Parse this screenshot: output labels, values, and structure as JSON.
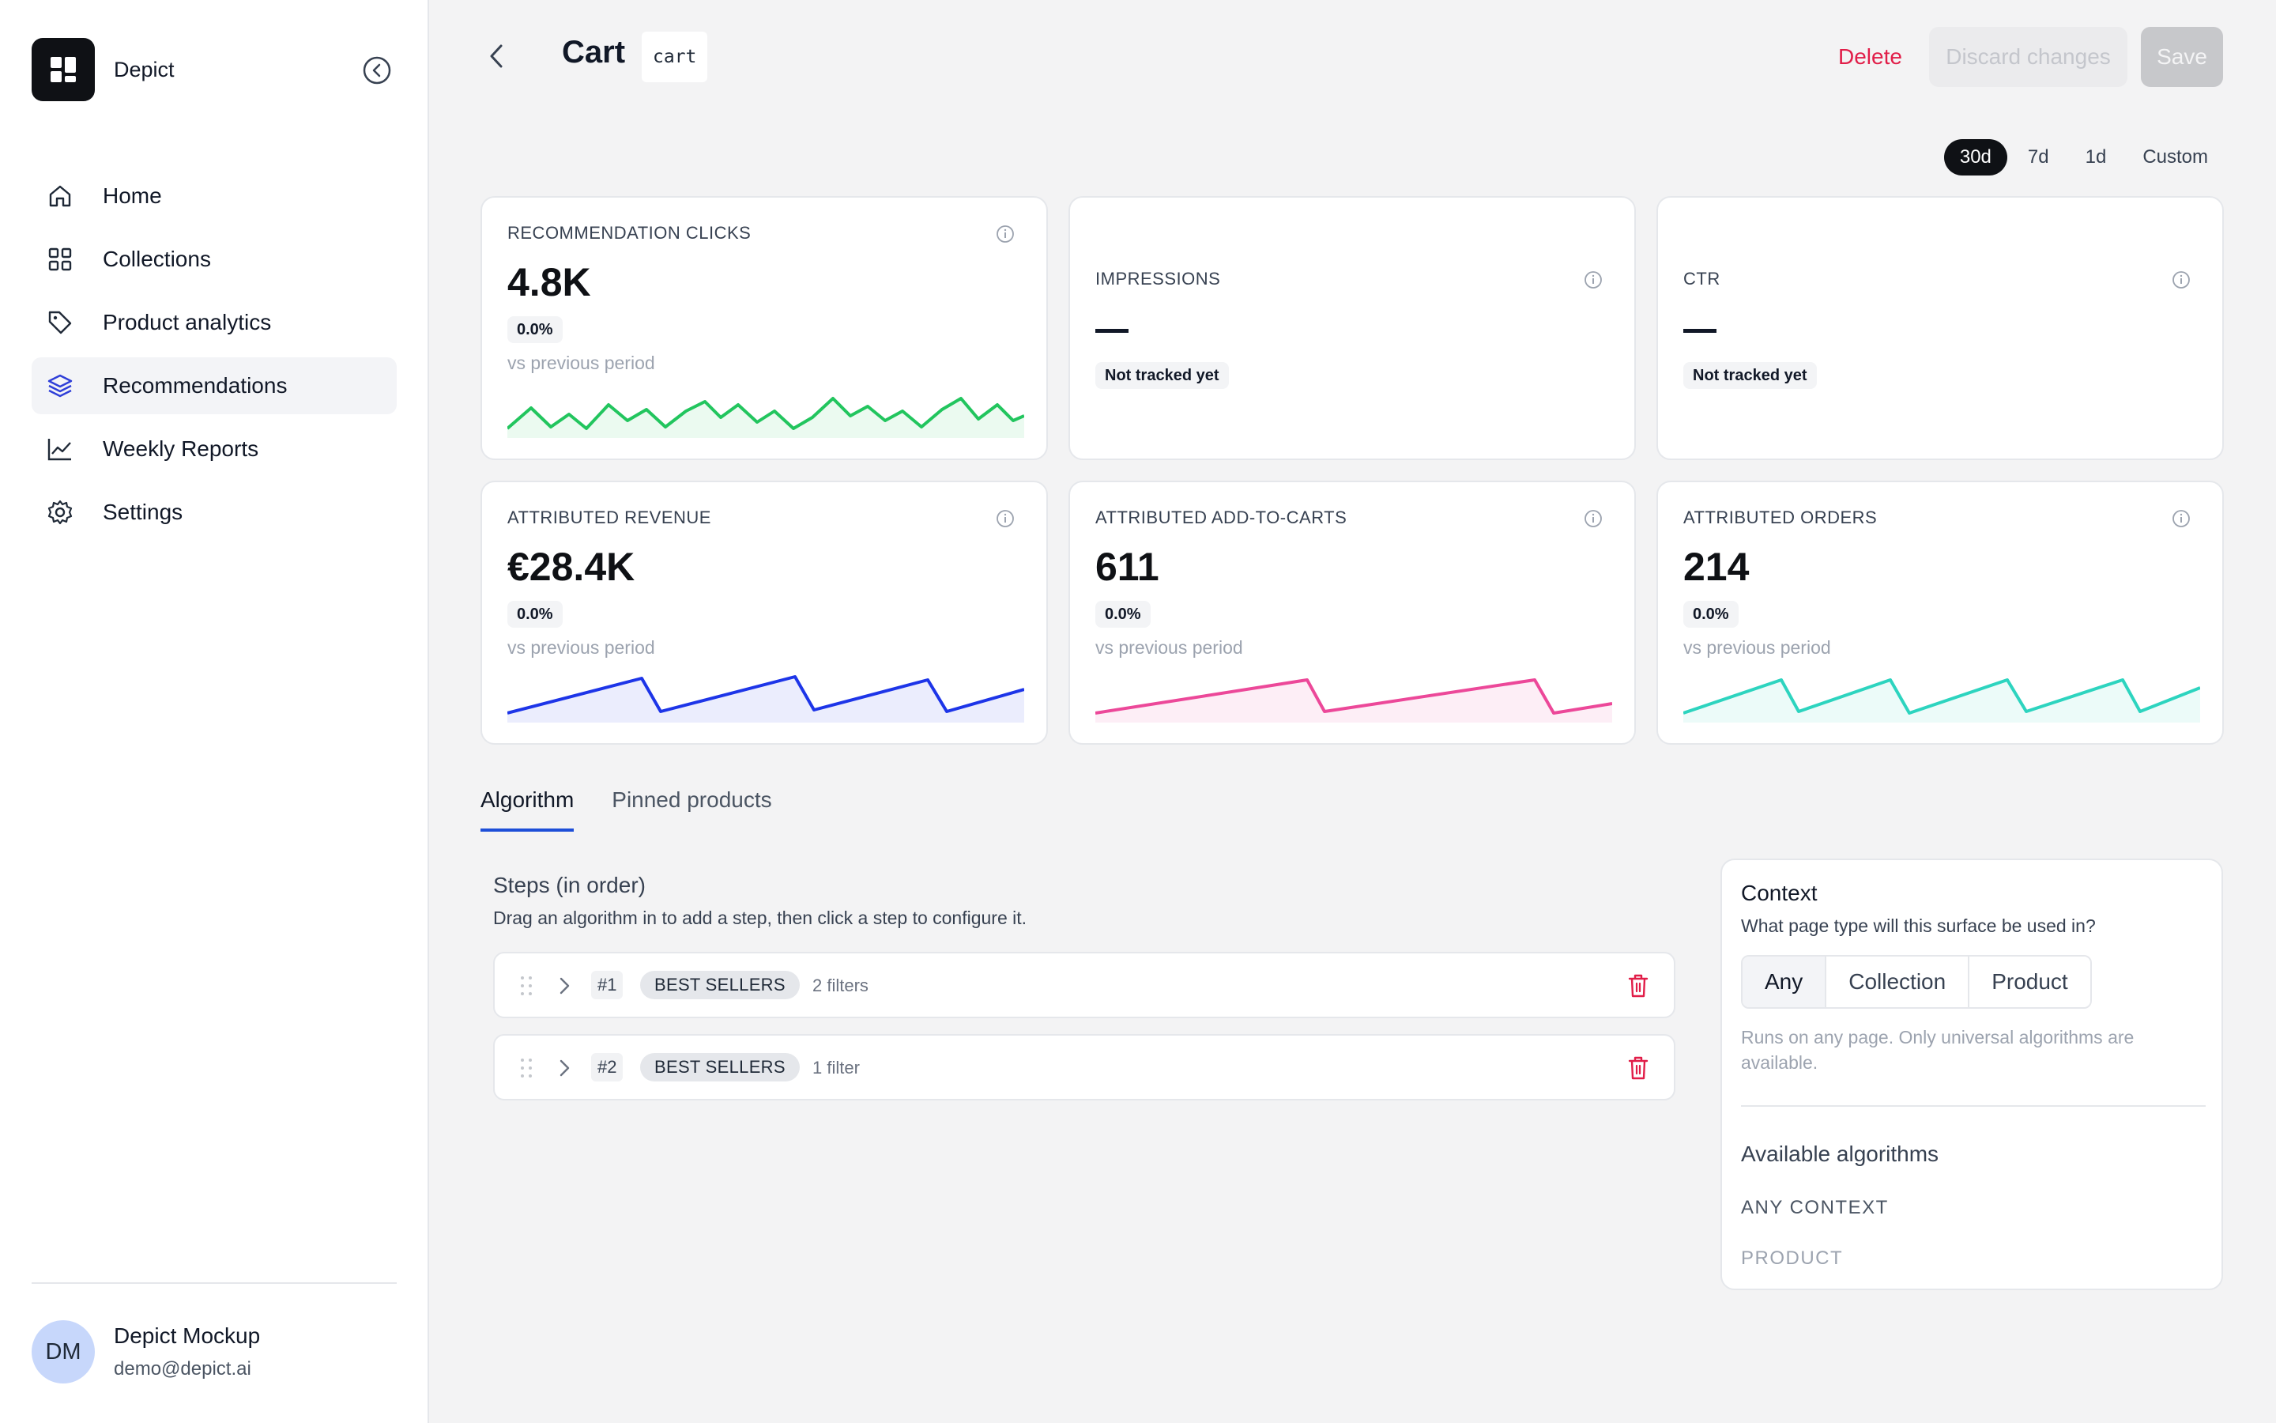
{
  "sidebar": {
    "brand": "Depict",
    "items": [
      {
        "label": "Home",
        "icon": "home-icon"
      },
      {
        "label": "Collections",
        "icon": "grid-icon"
      },
      {
        "label": "Product analytics",
        "icon": "tag-icon"
      },
      {
        "label": "Recommendations",
        "icon": "layers-icon",
        "active": true
      },
      {
        "label": "Weekly Reports",
        "icon": "line-chart-icon"
      },
      {
        "label": "Settings",
        "icon": "gear-icon"
      }
    ],
    "user": {
      "initials": "DM",
      "name": "Depict Mockup",
      "email": "demo@depict.ai"
    }
  },
  "header": {
    "title": "Cart",
    "slug": "cart",
    "delete_label": "Delete",
    "discard_label": "Discard changes",
    "save_label": "Save"
  },
  "range": {
    "options": [
      "30d",
      "7d",
      "1d",
      "Custom"
    ],
    "selected": "30d"
  },
  "metrics": [
    {
      "label": "RECOMMENDATION CLICKS",
      "value": "4.8K",
      "delta": "0.0%",
      "sub": "vs previous period",
      "color": "#22c55e"
    },
    {
      "label": "IMPRESSIONS",
      "value": "—",
      "delta": "Not tracked yet"
    },
    {
      "label": "CTR",
      "value": "—",
      "delta": "Not tracked yet"
    },
    {
      "label": "ATTRIBUTED REVENUE",
      "value": "€28.4K",
      "delta": "0.0%",
      "sub": "vs previous period",
      "color": "#1d35e8"
    },
    {
      "label": "ATTRIBUTED ADD-TO-CARTS",
      "value": "611",
      "delta": "0.0%",
      "sub": "vs previous period",
      "color": "#ec4899"
    },
    {
      "label": "ATTRIBUTED ORDERS",
      "value": "214",
      "delta": "0.0%",
      "sub": "vs previous period",
      "color": "#2dd4bf"
    }
  ],
  "tabs": [
    "Algorithm",
    "Pinned products"
  ],
  "steps": {
    "title": "Steps (in order)",
    "subtitle": "Drag an algorithm in to add a step, then click a step to configure it.",
    "items": [
      {
        "num": "#1",
        "algo": "BEST SELLERS",
        "filters": "2 filters"
      },
      {
        "num": "#2",
        "algo": "BEST SELLERS",
        "filters": "1 filter"
      }
    ]
  },
  "context": {
    "title": "Context",
    "question": "What page type will this surface be used in?",
    "options": [
      "Any",
      "Collection",
      "Product"
    ],
    "selected": "Any",
    "note": "Runs on any page. Only universal algorithms are available.",
    "algos_title": "Available algorithms",
    "any_context": "ANY CONTEXT",
    "product": "PRODUCT"
  }
}
